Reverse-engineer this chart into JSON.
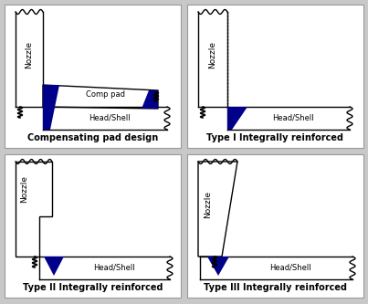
{
  "fig_w": 4.03,
  "fig_h": 3.33,
  "dpi": 100,
  "bg_color": "#c8c8c8",
  "panel_bg": "#ffffff",
  "outline_color": "#000000",
  "blue_color": "#00008B",
  "lw": 1.0,
  "labels": {
    "tl": "Compensating pad design",
    "tr": "Type I Integrally reinforced",
    "bl": "Type II Integrally reinforced",
    "br": "Type III Integrally reinforced"
  },
  "nozzle_label": "Nozzle",
  "comp_pad_label": "Comp pad",
  "head_shell_label": "Head/Shell",
  "label_fontsize": 7.0,
  "nozzle_fontsize": 6.5
}
